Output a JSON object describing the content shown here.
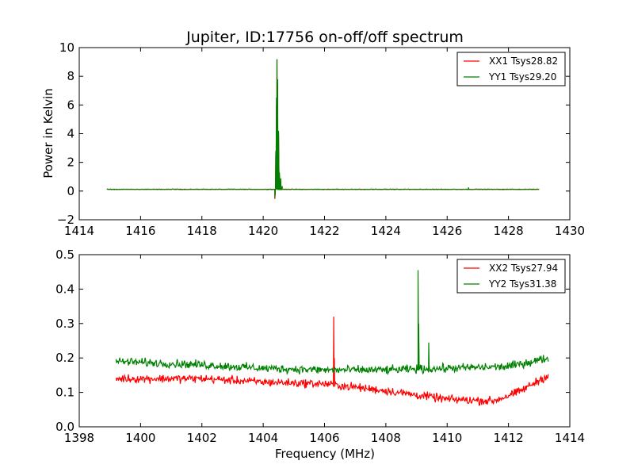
{
  "chart_data": [
    {
      "type": "line",
      "title": "Jupiter, ID:17756 on-off/off spectrum",
      "xlabel": "",
      "ylabel": "Power in Kelvin",
      "xlim": [
        1414,
        1430
      ],
      "ylim": [
        -2,
        10
      ],
      "xticks": [
        "1414",
        "1416",
        "1418",
        "1420",
        "1422",
        "1424",
        "1426",
        "1428",
        "1430"
      ],
      "yticks": [
        "−2",
        "0",
        "2",
        "4",
        "6",
        "8",
        "10"
      ],
      "grid": false,
      "legend_position": "top-right",
      "x_range": [
        1414.9,
        1429.0
      ],
      "series": [
        {
          "name": "XX1 Tsys28.82",
          "color": "#ff0000",
          "baseline": 0.12,
          "noise": 0.03,
          "features": [
            [
              1420.38,
              -0.55
            ],
            [
              1420.41,
              2.5
            ],
            [
              1420.43,
              6.0
            ],
            [
              1420.45,
              9.15
            ],
            [
              1420.47,
              7.5
            ],
            [
              1420.5,
              4.0
            ],
            [
              1420.53,
              1.2
            ],
            [
              1420.57,
              0.8
            ],
            [
              1420.62,
              0.3
            ]
          ]
        },
        {
          "name": "YY1 Tsys29.20",
          "color": "#008000",
          "baseline": 0.12,
          "noise": 0.03,
          "features": [
            [
              1420.38,
              -0.45
            ],
            [
              1420.41,
              2.8
            ],
            [
              1420.43,
              6.5
            ],
            [
              1420.45,
              9.2
            ],
            [
              1420.47,
              7.8
            ],
            [
              1420.5,
              4.2
            ],
            [
              1420.53,
              1.3
            ],
            [
              1420.57,
              0.9
            ],
            [
              1420.62,
              0.35
            ],
            [
              1426.7,
              0.25
            ]
          ]
        }
      ]
    },
    {
      "type": "line",
      "title": "",
      "xlabel": "Frequency (MHz)",
      "ylabel": "",
      "xlim": [
        1398,
        1414
      ],
      "ylim": [
        0.0,
        0.5
      ],
      "xticks": [
        "1398",
        "1400",
        "1402",
        "1404",
        "1406",
        "1408",
        "1410",
        "1412",
        "1414"
      ],
      "yticks": [
        "0.0",
        "0.1",
        "0.2",
        "0.3",
        "0.4",
        "0.5"
      ],
      "grid": false,
      "legend_position": "top-right",
      "x_range": [
        1399.2,
        1413.3
      ],
      "series": [
        {
          "name": "XX2 Tsys27.94",
          "color": "#ff0000",
          "curve": [
            [
              1399.2,
              0.14
            ],
            [
              1402,
              0.14
            ],
            [
              1404,
              0.13
            ],
            [
              1406,
              0.125
            ],
            [
              1408,
              0.105
            ],
            [
              1410,
              0.08
            ],
            [
              1411.5,
              0.075
            ],
            [
              1412.3,
              0.1
            ],
            [
              1413.3,
              0.15
            ]
          ],
          "noise": 0.018,
          "features": [
            [
              1406.3,
              0.32
            ],
            [
              1406.32,
              0.2
            ]
          ]
        },
        {
          "name": "YY2 Tsys31.38",
          "color": "#008000",
          "curve": [
            [
              1399.2,
              0.19
            ],
            [
              1402,
              0.18
            ],
            [
              1404,
              0.17
            ],
            [
              1406,
              0.165
            ],
            [
              1408,
              0.165
            ],
            [
              1410,
              0.17
            ],
            [
              1412,
              0.175
            ],
            [
              1413.3,
              0.2
            ]
          ],
          "noise": 0.018,
          "features": [
            [
              1409.05,
              0.455
            ],
            [
              1409.07,
              0.3
            ],
            [
              1409.4,
              0.245
            ]
          ]
        }
      ]
    }
  ]
}
